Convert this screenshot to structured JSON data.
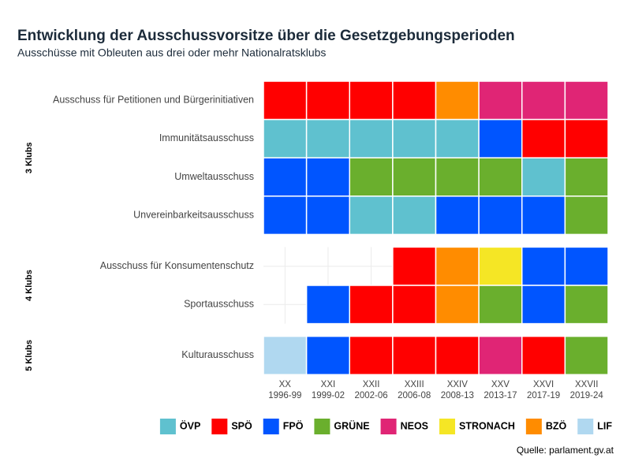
{
  "chart_data": {
    "type": "heatmap",
    "title": "Entwicklung der Ausschussvorsitze über die Gesetzgebungsperioden",
    "subtitle": "Ausschüsse mit Obleuten aus drei oder mehr Nationalratsklubs",
    "source": "Quelle: parlament.gv.at",
    "categories": [
      "XX",
      "XXI",
      "XXII",
      "XXIII",
      "XXIV",
      "XXV",
      "XXVI",
      "XXVII"
    ],
    "category_years": [
      "1996-99",
      "1999-02",
      "2002-06",
      "2006-08",
      "2008-13",
      "2013-17",
      "2017-19",
      "2019-24"
    ],
    "parties": [
      {
        "name": "ÖVP",
        "color": "#5fc1cf"
      },
      {
        "name": "SPÖ",
        "color": "#ff0000"
      },
      {
        "name": "FPÖ",
        "color": "#0055ff"
      },
      {
        "name": "GRÜNE",
        "color": "#6aaf2d"
      },
      {
        "name": "NEOS",
        "color": "#e02575"
      },
      {
        "name": "STRONACH",
        "color": "#f5e625"
      },
      {
        "name": "BZÖ",
        "color": "#ff8c00"
      },
      {
        "name": "LIF",
        "color": "#b0d8f0"
      }
    ],
    "groups": [
      {
        "name": "3 Klubs",
        "rows": [
          {
            "name": "Ausschuss für Petitionen und Bürgerinitiativen",
            "values": [
              "SPÖ",
              "SPÖ",
              "SPÖ",
              "SPÖ",
              "BZÖ",
              "NEOS",
              "NEOS",
              "NEOS"
            ]
          },
          {
            "name": "Immunitätsausschuss",
            "values": [
              "ÖVP",
              "ÖVP",
              "ÖVP",
              "ÖVP",
              "ÖVP",
              "FPÖ",
              "SPÖ",
              "SPÖ"
            ]
          },
          {
            "name": "Umweltausschuss",
            "values": [
              "FPÖ",
              "FPÖ",
              "GRÜNE",
              "GRÜNE",
              "GRÜNE",
              "GRÜNE",
              "ÖVP",
              "GRÜNE"
            ]
          },
          {
            "name": "Unvereinbarkeitsausschuss",
            "values": [
              "FPÖ",
              "FPÖ",
              "ÖVP",
              "ÖVP",
              "FPÖ",
              "FPÖ",
              "FPÖ",
              "GRÜNE"
            ]
          }
        ]
      },
      {
        "name": "4 Klubs",
        "rows": [
          {
            "name": "Ausschuss für Konsumentenschutz",
            "values": [
              null,
              null,
              null,
              "SPÖ",
              "BZÖ",
              "STRONACH",
              "FPÖ",
              "FPÖ"
            ]
          },
          {
            "name": "Sportausschuss",
            "values": [
              null,
              "FPÖ",
              "SPÖ",
              "SPÖ",
              "BZÖ",
              "GRÜNE",
              "FPÖ",
              "GRÜNE"
            ]
          }
        ]
      },
      {
        "name": "5 Klubs",
        "rows": [
          {
            "name": "Kulturausschuss",
            "values": [
              "LIF",
              "FPÖ",
              "SPÖ",
              "SPÖ",
              "SPÖ",
              "NEOS",
              "SPÖ",
              "GRÜNE"
            ]
          }
        ]
      }
    ],
    "grid": true,
    "legend": "bottom"
  }
}
